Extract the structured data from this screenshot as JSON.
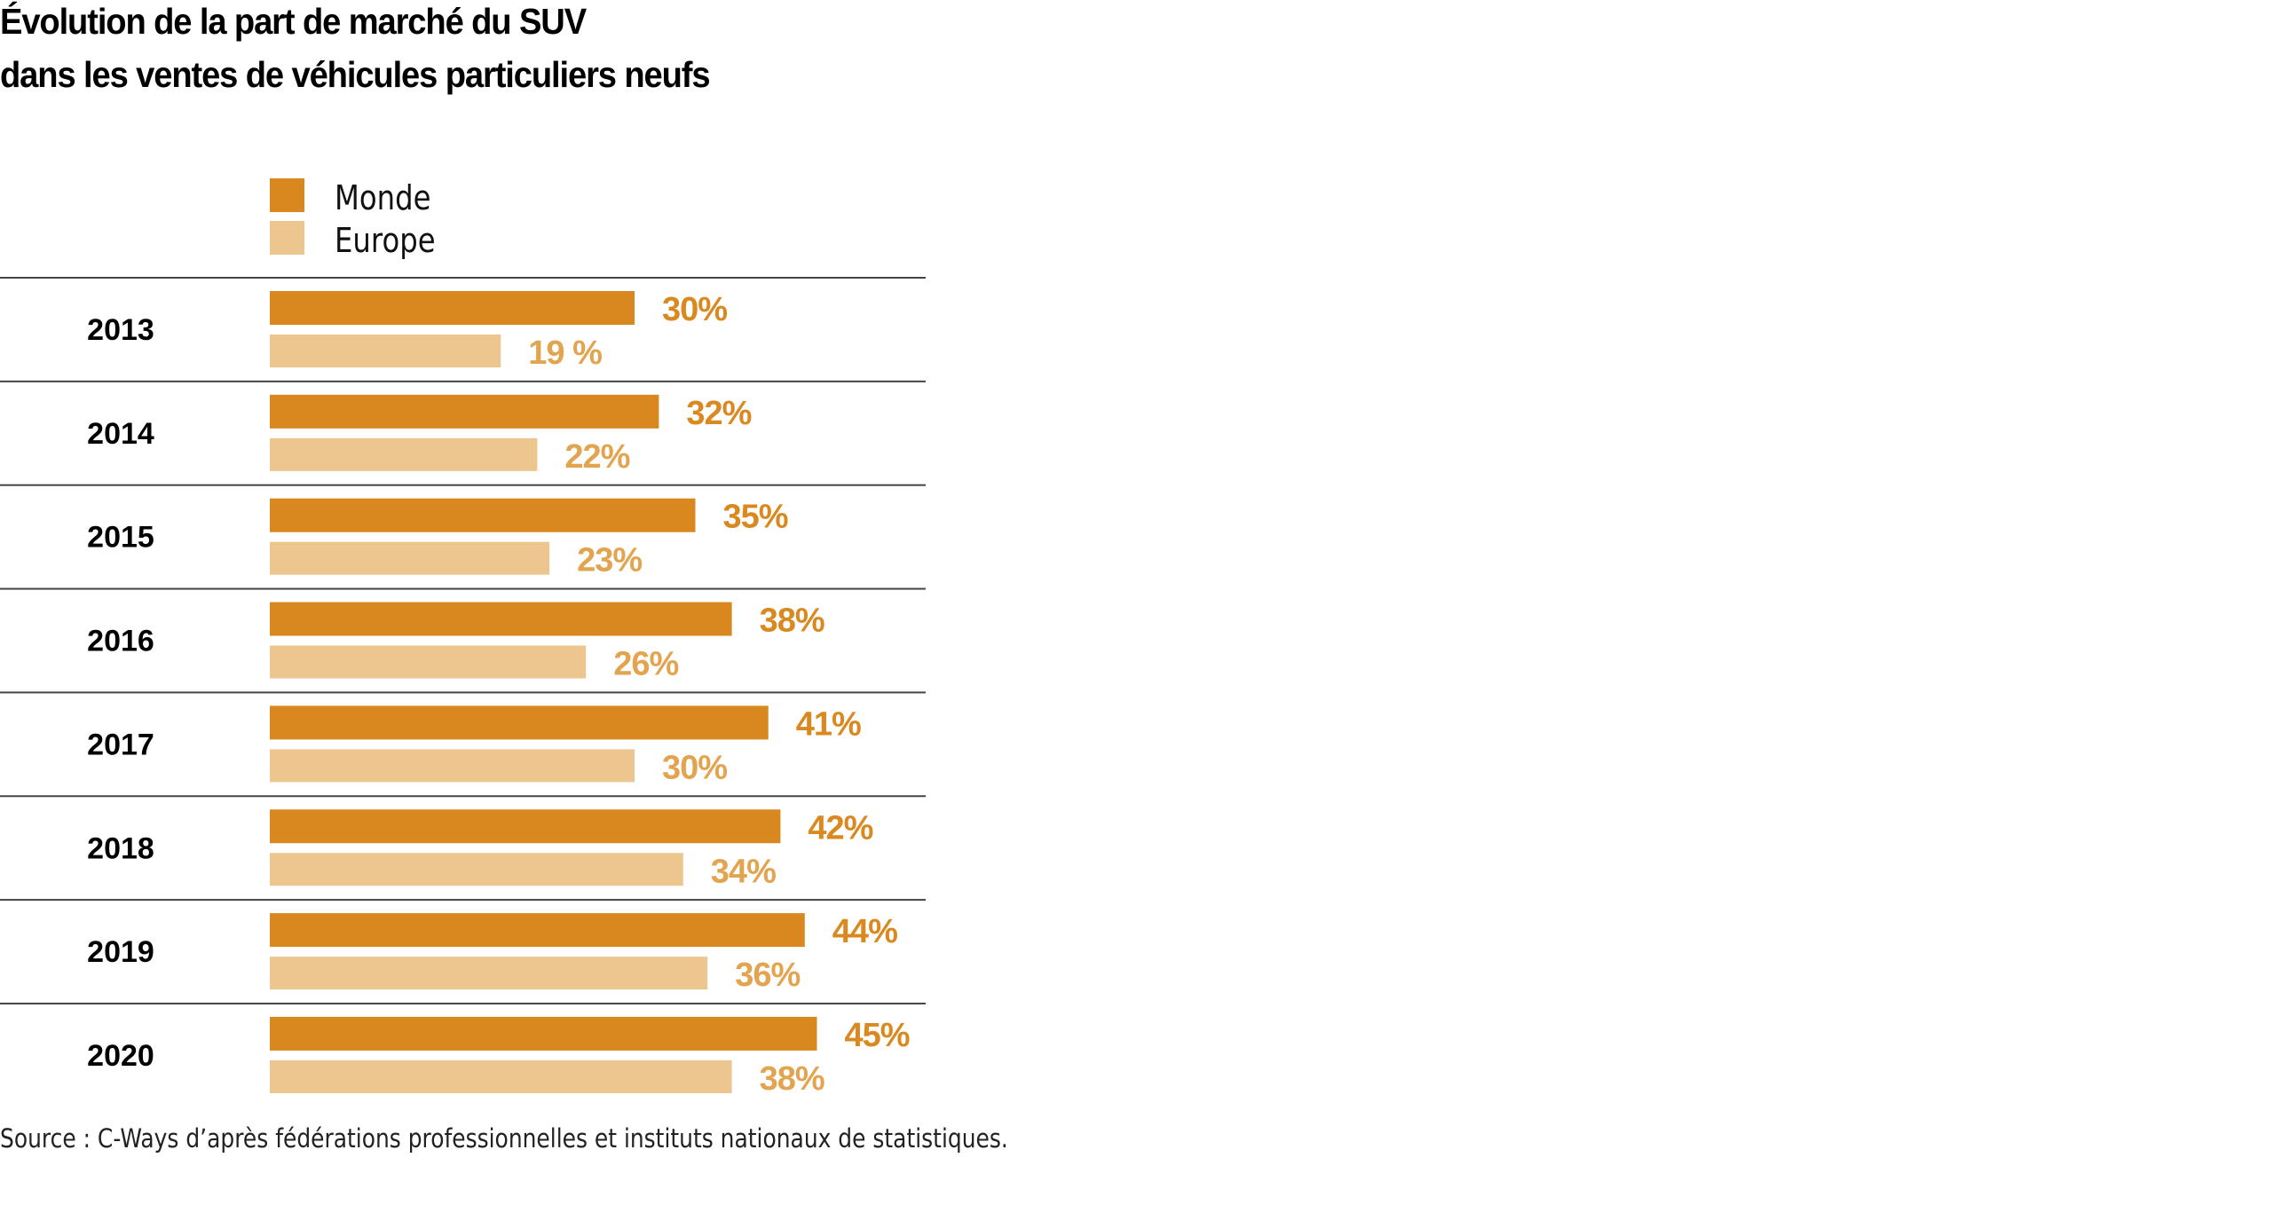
{
  "colors": {
    "monde_bar": "#d9881f",
    "europe_bar": "#edc68f",
    "monde_label": "#d9891f",
    "europe_label": "#e3a450",
    "separator": "#444444"
  },
  "chart_data": {
    "type": "bar",
    "orientation": "horizontal",
    "title": "Évolution de la part de marché du SUV dans les ventes de véhicules particuliers neufs",
    "title_lines": [
      "Évolution de la part de marché du SUV",
      "dans les ventes de véhicules particuliers neufs"
    ],
    "xlabel": "",
    "ylabel": "",
    "unit": "%",
    "categories": [
      "2013",
      "2014",
      "2015",
      "2016",
      "2017",
      "2018",
      "2019",
      "2020"
    ],
    "series": [
      {
        "name": "Monde",
        "values": [
          30,
          32,
          35,
          38,
          41,
          42,
          44,
          45
        ],
        "labels": [
          "30%",
          "32%",
          "35%",
          "38%",
          "41%",
          "42%",
          "44%",
          "45%"
        ]
      },
      {
        "name": "Europe",
        "values": [
          19,
          22,
          23,
          26,
          30,
          34,
          36,
          38
        ],
        "labels": [
          "19 %",
          "22%",
          "23%",
          "26%",
          "30%",
          "34%",
          "36%",
          "38%"
        ]
      }
    ],
    "xlim": [
      0,
      50
    ],
    "grid": false,
    "legend_position": "top-left",
    "source": "Source : C-Ways d’après fédérations professionnelles et instituts nationaux de statistiques."
  }
}
